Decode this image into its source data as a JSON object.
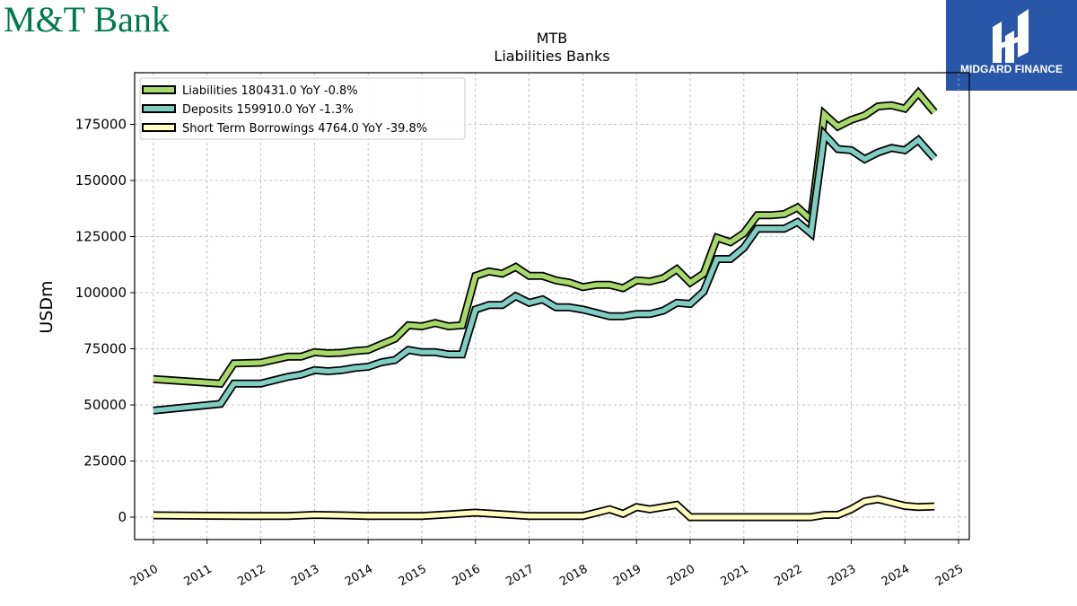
{
  "branding": {
    "left_logo_text": "M&T Bank",
    "left_logo_color": "#007a4d",
    "right_logo_text": "MIDGARD FINANCE",
    "right_logo_bg": "#2a56a8"
  },
  "chart_data": {
    "type": "line",
    "title": "MTB",
    "subtitle": "Liabilities Banks",
    "xlabel": "",
    "ylabel": "USDm",
    "xlim": [
      2009.65,
      2025.2
    ],
    "ylim": [
      -10000,
      198000
    ],
    "x_ticks": [
      "2010",
      "2011",
      "2012",
      "2013",
      "2014",
      "2015",
      "2016",
      "2017",
      "2018",
      "2019",
      "2020",
      "2021",
      "2022",
      "2023",
      "2024",
      "2025"
    ],
    "y_ticks": [
      0,
      25000,
      50000,
      75000,
      100000,
      125000,
      150000,
      175000
    ],
    "y_tick_labels": [
      "0",
      "25000",
      "50000",
      "75000",
      "100000",
      "125000",
      "150000",
      "175000"
    ],
    "grid": true,
    "legend_position": "top-left",
    "series": [
      {
        "name": "Liabilities  180431.0 YoY -0.8%",
        "color": "#a6d96a",
        "points": [
          [
            2010.0,
            61500
          ],
          [
            2011.25,
            59500
          ],
          [
            2011.5,
            68500
          ],
          [
            2012.0,
            68800
          ],
          [
            2012.5,
            71500
          ],
          [
            2012.75,
            71500
          ],
          [
            2013.0,
            73500
          ],
          [
            2013.25,
            73000
          ],
          [
            2013.5,
            73200
          ],
          [
            2013.75,
            74000
          ],
          [
            2014.0,
            74500
          ],
          [
            2014.25,
            77000
          ],
          [
            2014.5,
            79500
          ],
          [
            2014.75,
            85500
          ],
          [
            2015.0,
            85000
          ],
          [
            2015.25,
            86500
          ],
          [
            2015.5,
            85000
          ],
          [
            2015.75,
            85500
          ],
          [
            2016.0,
            107500
          ],
          [
            2016.25,
            109500
          ],
          [
            2016.5,
            108500
          ],
          [
            2016.75,
            111500
          ],
          [
            2017.0,
            107500
          ],
          [
            2017.25,
            107500
          ],
          [
            2017.5,
            105500
          ],
          [
            2017.75,
            104500
          ],
          [
            2018.0,
            102500
          ],
          [
            2018.25,
            103500
          ],
          [
            2018.5,
            103500
          ],
          [
            2018.75,
            102000
          ],
          [
            2019.0,
            105500
          ],
          [
            2019.25,
            105000
          ],
          [
            2019.5,
            106500
          ],
          [
            2019.75,
            110500
          ],
          [
            2020.0,
            104500
          ],
          [
            2020.25,
            108500
          ],
          [
            2020.5,
            124500
          ],
          [
            2020.75,
            122500
          ],
          [
            2021.0,
            126500
          ],
          [
            2021.25,
            134500
          ],
          [
            2021.5,
            134500
          ],
          [
            2021.75,
            135000
          ],
          [
            2022.0,
            138000
          ],
          [
            2022.25,
            132500
          ],
          [
            2022.5,
            179500
          ],
          [
            2022.75,
            174000
          ],
          [
            2023.0,
            177000
          ],
          [
            2023.25,
            179000
          ],
          [
            2023.5,
            183000
          ],
          [
            2023.75,
            183500
          ],
          [
            2024.0,
            182000
          ],
          [
            2024.25,
            189000
          ],
          [
            2024.55,
            180431
          ]
        ]
      },
      {
        "name": "Deposits  159910.0 YoY -1.3%",
        "color": "#80cdc1",
        "points": [
          [
            2010.0,
            47500
          ],
          [
            2011.25,
            50500
          ],
          [
            2011.5,
            59500
          ],
          [
            2012.0,
            59500
          ],
          [
            2012.5,
            62500
          ],
          [
            2012.75,
            63500
          ],
          [
            2013.0,
            65500
          ],
          [
            2013.25,
            65000
          ],
          [
            2013.5,
            65500
          ],
          [
            2013.75,
            66500
          ],
          [
            2014.0,
            67000
          ],
          [
            2014.25,
            69000
          ],
          [
            2014.5,
            70000
          ],
          [
            2014.75,
            74500
          ],
          [
            2015.0,
            73500
          ],
          [
            2015.25,
            73500
          ],
          [
            2015.5,
            72500
          ],
          [
            2015.75,
            72500
          ],
          [
            2016.0,
            92500
          ],
          [
            2016.25,
            94500
          ],
          [
            2016.5,
            94500
          ],
          [
            2016.75,
            98500
          ],
          [
            2017.0,
            95500
          ],
          [
            2017.25,
            97000
          ],
          [
            2017.5,
            93500
          ],
          [
            2017.75,
            93500
          ],
          [
            2018.0,
            92500
          ],
          [
            2018.25,
            91000
          ],
          [
            2018.5,
            89500
          ],
          [
            2018.75,
            89500
          ],
          [
            2019.0,
            90500
          ],
          [
            2019.25,
            90500
          ],
          [
            2019.5,
            92000
          ],
          [
            2019.75,
            95500
          ],
          [
            2020.0,
            95000
          ],
          [
            2020.25,
            100500
          ],
          [
            2020.5,
            115000
          ],
          [
            2020.75,
            115000
          ],
          [
            2021.0,
            120000
          ],
          [
            2021.25,
            128500
          ],
          [
            2021.5,
            128500
          ],
          [
            2021.75,
            128500
          ],
          [
            2022.0,
            131500
          ],
          [
            2022.25,
            126500
          ],
          [
            2022.5,
            170500
          ],
          [
            2022.75,
            164000
          ],
          [
            2023.0,
            163500
          ],
          [
            2023.25,
            159500
          ],
          [
            2023.5,
            162500
          ],
          [
            2023.75,
            164500
          ],
          [
            2024.0,
            163500
          ],
          [
            2024.25,
            168000
          ],
          [
            2024.55,
            159910
          ]
        ]
      },
      {
        "name": "Short Term Borrowings  4764.0 YoY -39.8%",
        "color": "#ffffbf",
        "points": [
          [
            2010.0,
            800
          ],
          [
            2011.0,
            600
          ],
          [
            2011.75,
            500
          ],
          [
            2012.5,
            500
          ],
          [
            2013.0,
            1000
          ],
          [
            2013.5,
            800
          ],
          [
            2014.0,
            500
          ],
          [
            2015.0,
            500
          ],
          [
            2016.0,
            2000
          ],
          [
            2017.0,
            500
          ],
          [
            2018.0,
            500
          ],
          [
            2018.5,
            3500
          ],
          [
            2018.75,
            1500
          ],
          [
            2019.0,
            4500
          ],
          [
            2019.25,
            3500
          ],
          [
            2019.75,
            5500
          ],
          [
            2020.0,
            0
          ],
          [
            2020.5,
            0
          ],
          [
            2021.0,
            0
          ],
          [
            2021.5,
            0
          ],
          [
            2022.0,
            0
          ],
          [
            2022.25,
            0
          ],
          [
            2022.5,
            1000
          ],
          [
            2022.75,
            1000
          ],
          [
            2023.0,
            3500
          ],
          [
            2023.25,
            7000
          ],
          [
            2023.5,
            8000
          ],
          [
            2023.75,
            6500
          ],
          [
            2024.0,
            5000
          ],
          [
            2024.25,
            4500
          ],
          [
            2024.55,
            4764
          ]
        ]
      }
    ]
  }
}
